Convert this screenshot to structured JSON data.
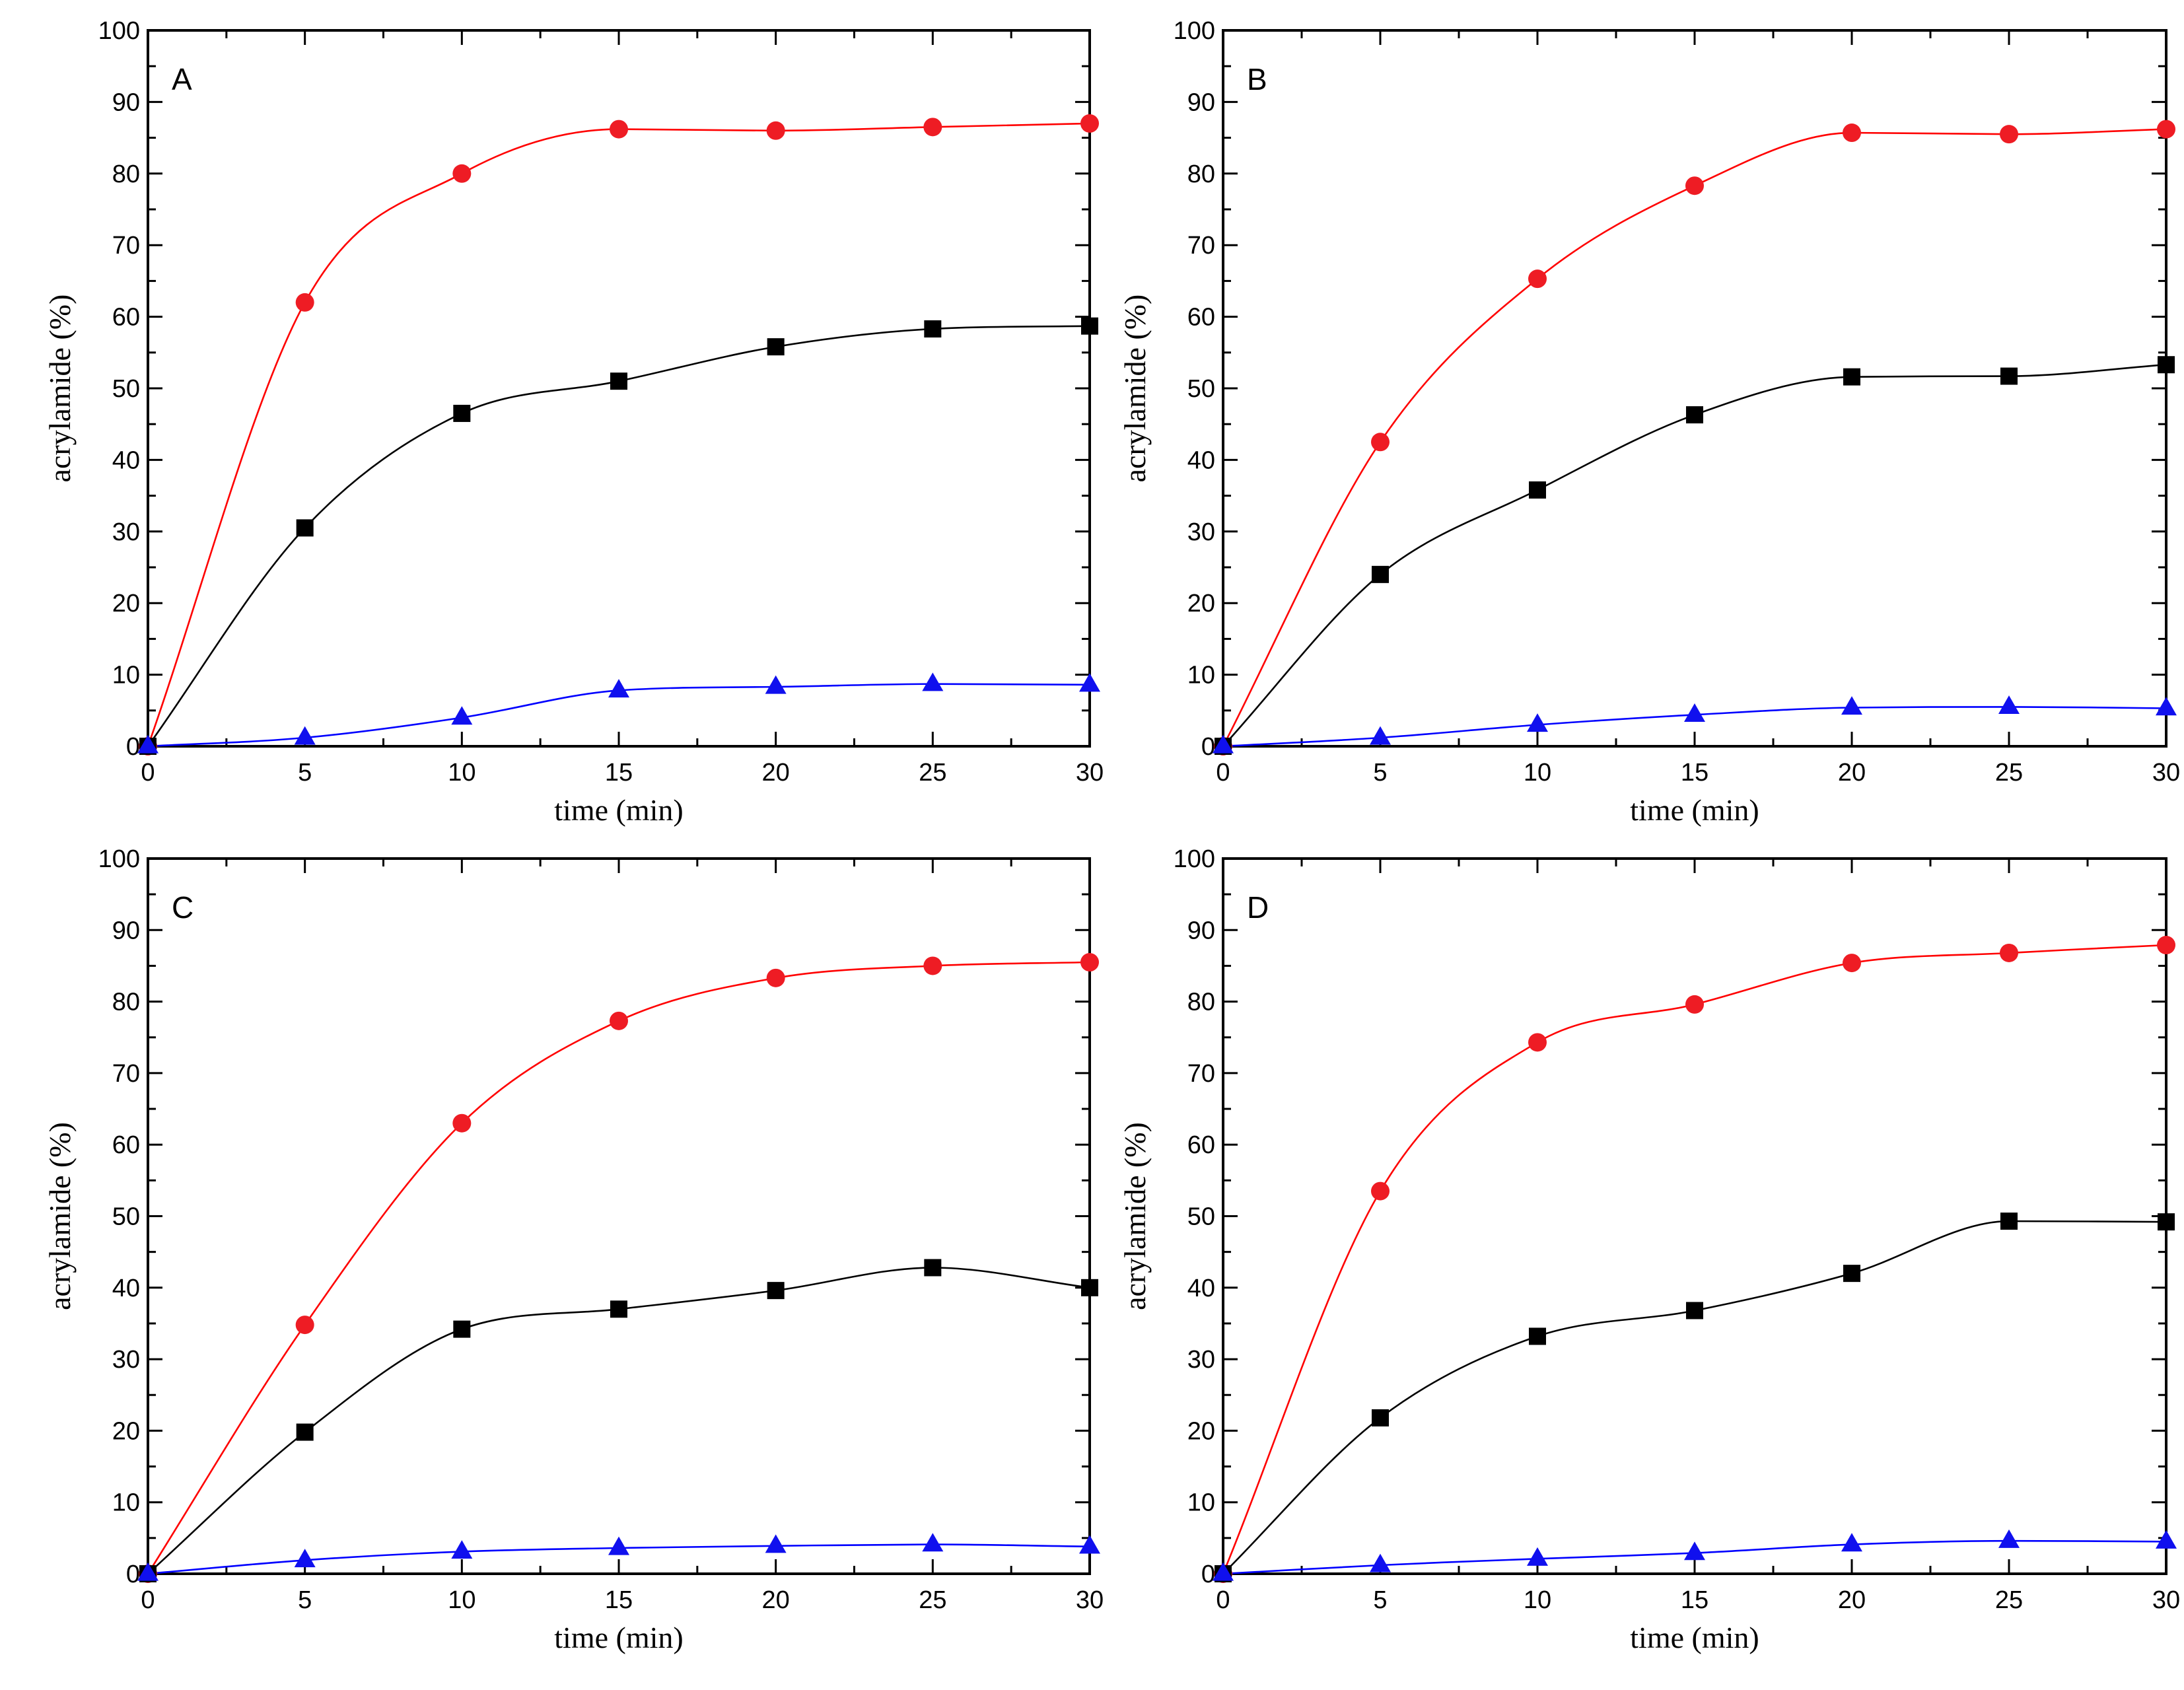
{
  "figure": {
    "panels_label": "acrylamide formation vs time, panels A-D"
  },
  "colors": {
    "series_square": "#000000",
    "series_circle": "#ee1c24",
    "series_triangle": "#1010ee",
    "fit_circle": "#ff0000",
    "fit_square": "#000000",
    "fit_triangle": "#0000ff"
  },
  "chart_data": [
    {
      "type": "scatter",
      "panel": "A",
      "xlabel": "time (min)",
      "ylabel": "acrylamide  (%)",
      "xlim": [
        0,
        30
      ],
      "ylim": [
        0,
        100
      ],
      "xticks": [
        0,
        5,
        10,
        15,
        20,
        25,
        30
      ],
      "yticks": [
        0,
        10,
        20,
        30,
        40,
        50,
        60,
        70,
        80,
        90,
        100
      ],
      "x": [
        0,
        5,
        10,
        15,
        20,
        25,
        30
      ],
      "series": [
        {
          "name": "circle",
          "marker": "circle",
          "values": [
            0,
            62,
            80,
            86.2,
            86,
            86.5,
            87
          ]
        },
        {
          "name": "square",
          "marker": "square",
          "values": [
            0,
            30.5,
            46.5,
            51,
            55.8,
            58.3,
            58.7
          ]
        },
        {
          "name": "triangle",
          "marker": "triangle",
          "values": [
            0,
            1.2,
            4,
            7.8,
            8.3,
            8.7,
            8.6
          ]
        }
      ]
    },
    {
      "type": "scatter",
      "panel": "B",
      "xlabel": "time (min)",
      "ylabel": "acrylamide  (%)",
      "xlim": [
        0,
        30
      ],
      "ylim": [
        0,
        100
      ],
      "xticks": [
        0,
        5,
        10,
        15,
        20,
        25,
        30
      ],
      "yticks": [
        0,
        10,
        20,
        30,
        40,
        50,
        60,
        70,
        80,
        90,
        100
      ],
      "x": [
        0,
        5,
        10,
        15,
        20,
        25,
        30
      ],
      "series": [
        {
          "name": "circle",
          "marker": "circle",
          "values": [
            0,
            42.5,
            65.3,
            78.3,
            85.7,
            85.5,
            86.2
          ]
        },
        {
          "name": "square",
          "marker": "square",
          "values": [
            0,
            24,
            35.8,
            46.3,
            51.6,
            51.7,
            53.3
          ]
        },
        {
          "name": "triangle",
          "marker": "triangle",
          "values": [
            0,
            1.2,
            3,
            4.4,
            5.4,
            5.5,
            5.3
          ]
        }
      ]
    },
    {
      "type": "scatter",
      "panel": "C",
      "xlabel": "time (min)",
      "ylabel": "acrylamide  (%)",
      "xlim": [
        0,
        30
      ],
      "ylim": [
        0,
        100
      ],
      "xticks": [
        0,
        5,
        10,
        15,
        20,
        25,
        30
      ],
      "yticks": [
        0,
        10,
        20,
        30,
        40,
        50,
        60,
        70,
        80,
        90,
        100
      ],
      "x": [
        0,
        5,
        10,
        15,
        20,
        25,
        30
      ],
      "series": [
        {
          "name": "circle",
          "marker": "circle",
          "values": [
            0,
            34.8,
            63,
            77.3,
            83.3,
            85,
            85.5
          ]
        },
        {
          "name": "square",
          "marker": "square",
          "values": [
            0,
            19.8,
            34.2,
            37,
            39.6,
            42.8,
            40
          ]
        },
        {
          "name": "triangle",
          "marker": "triangle",
          "values": [
            0,
            1.9,
            3.1,
            3.6,
            3.9,
            4.1,
            3.8
          ]
        }
      ]
    },
    {
      "type": "scatter",
      "panel": "D",
      "xlabel": "time (min)",
      "ylabel": "acrylamide  (%)",
      "xlim": [
        0,
        30
      ],
      "ylim": [
        0,
        100
      ],
      "xticks": [
        0,
        5,
        10,
        15,
        20,
        25,
        30
      ],
      "yticks": [
        0,
        10,
        20,
        30,
        40,
        50,
        60,
        70,
        80,
        90,
        100
      ],
      "x": [
        0,
        5,
        10,
        15,
        20,
        25,
        30
      ],
      "series": [
        {
          "name": "circle",
          "marker": "circle",
          "values": [
            0,
            53.5,
            74.3,
            79.6,
            85.4,
            86.8,
            87.9
          ]
        },
        {
          "name": "square",
          "marker": "square",
          "values": [
            0,
            21.8,
            33.2,
            36.8,
            42,
            49.3,
            49.2
          ]
        },
        {
          "name": "triangle",
          "marker": "triangle",
          "values": [
            0,
            1.2,
            2.1,
            2.9,
            4.1,
            4.6,
            4.5
          ]
        }
      ]
    }
  ]
}
